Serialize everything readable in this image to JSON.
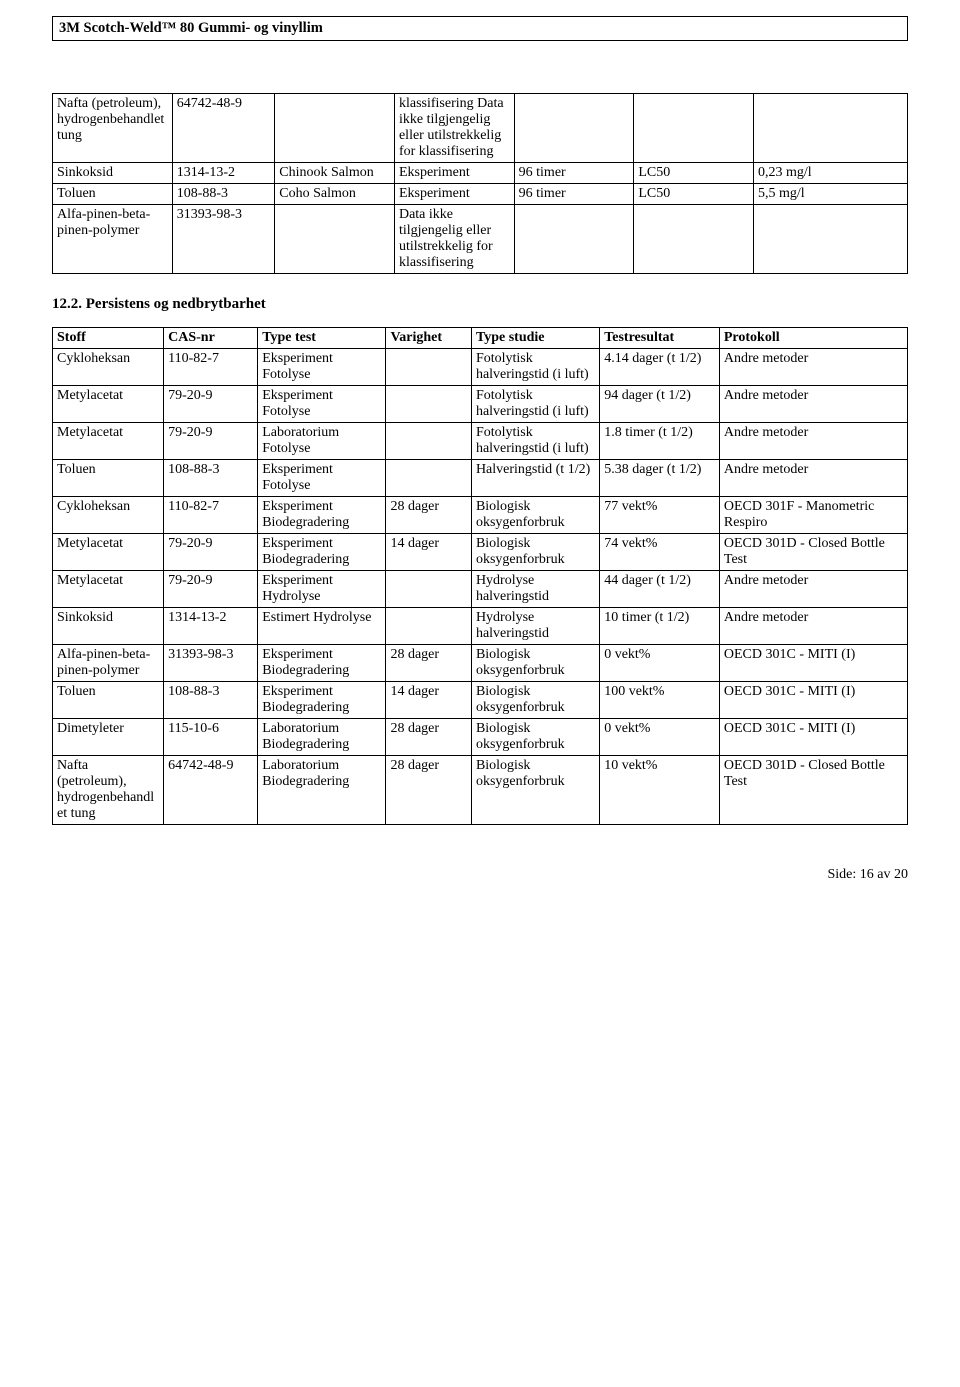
{
  "header": {
    "title": "3M Scotch-Weld™ 80 Gummi- og vinyllim"
  },
  "table1": {
    "rows": [
      {
        "c0": "Nafta (petroleum), hydrogenbehandlet tung",
        "c1": "64742-48-9",
        "c2": "",
        "c3": "klassifisering\nData ikke tilgjengelig eller utilstrekkelig for klassifisering",
        "c4": "",
        "c5": "",
        "c6": ""
      },
      {
        "c0": "Sinkoksid",
        "c1": "1314-13-2",
        "c2": "Chinook Salmon",
        "c3": "Eksperiment",
        "c4": "96 timer",
        "c5": "LC50",
        "c6": "0,23 mg/l"
      },
      {
        "c0": "Toluen",
        "c1": "108-88-3",
        "c2": "Coho Salmon",
        "c3": "Eksperiment",
        "c4": "96 timer",
        "c5": "LC50",
        "c6": "5,5 mg/l"
      },
      {
        "c0": "Alfa-pinen-beta-pinen-polymer",
        "c1": "31393-98-3",
        "c2": "",
        "c3": "Data ikke tilgjengelig eller utilstrekkelig for klassifisering",
        "c4": "",
        "c5": "",
        "c6": ""
      }
    ]
  },
  "section2": {
    "heading": "12.2. Persistens og nedbrytbarhet"
  },
  "table2": {
    "header": {
      "c0": "Stoff",
      "c1": "CAS-nr",
      "c2": "Type test",
      "c3": "Varighet",
      "c4": "Type studie",
      "c5": "Testresultat",
      "c6": "Protokoll"
    },
    "rows": [
      {
        "c0": "Cykloheksan",
        "c1": "110-82-7",
        "c2": "Eksperiment Fotolyse",
        "c3": "",
        "c4": "Fotolytisk halveringstid (i luft)",
        "c5": "4.14 dager (t 1/2)",
        "c6": "Andre metoder"
      },
      {
        "c0": "Metylacetat",
        "c1": "79-20-9",
        "c2": "Eksperiment Fotolyse",
        "c3": "",
        "c4": "Fotolytisk halveringstid (i luft)",
        "c5": "94 dager (t 1/2)",
        "c6": "Andre metoder"
      },
      {
        "c0": "Metylacetat",
        "c1": "79-20-9",
        "c2": "Laboratorium Fotolyse",
        "c3": "",
        "c4": "Fotolytisk halveringstid (i luft)",
        "c5": "1.8 timer (t 1/2)",
        "c6": "Andre metoder"
      },
      {
        "c0": "Toluen",
        "c1": "108-88-3",
        "c2": "Eksperiment Fotolyse",
        "c3": "",
        "c4": "Halveringstid (t 1/2)",
        "c5": "5.38 dager (t 1/2)",
        "c6": "Andre metoder"
      },
      {
        "c0": "Cykloheksan",
        "c1": "110-82-7",
        "c2": "Eksperiment Biodegradering",
        "c3": "28 dager",
        "c4": "Biologisk oksygenforbruk",
        "c5": "77 vekt%",
        "c6": "OECD 301F - Manometric Respiro"
      },
      {
        "c0": "Metylacetat",
        "c1": "79-20-9",
        "c2": "Eksperiment Biodegradering",
        "c3": "14 dager",
        "c4": "Biologisk oksygenforbruk",
        "c5": "74 vekt%",
        "c6": "OECD 301D - Closed Bottle Test"
      },
      {
        "c0": "Metylacetat",
        "c1": "79-20-9",
        "c2": "Eksperiment Hydrolyse",
        "c3": "",
        "c4": "Hydrolyse halveringstid",
        "c5": "44 dager (t 1/2)",
        "c6": "Andre metoder"
      },
      {
        "c0": "Sinkoksid",
        "c1": "1314-13-2",
        "c2": "Estimert Hydrolyse",
        "c3": "",
        "c4": "Hydrolyse halveringstid",
        "c5": "10 timer (t 1/2)",
        "c6": "Andre metoder"
      },
      {
        "c0": "Alfa-pinen-beta-pinen-polymer",
        "c1": "31393-98-3",
        "c2": "Eksperiment Biodegradering",
        "c3": "28 dager",
        "c4": "Biologisk oksygenforbruk",
        "c5": "0 vekt%",
        "c6": "OECD 301C - MITI (I)"
      },
      {
        "c0": "Toluen",
        "c1": "108-88-3",
        "c2": "Eksperiment Biodegradering",
        "c3": "14 dager",
        "c4": "Biologisk oksygenforbruk",
        "c5": "100 vekt%",
        "c6": "OECD 301C - MITI (I)"
      },
      {
        "c0": "Dimetyleter",
        "c1": "115-10-6",
        "c2": "Laboratorium Biodegradering",
        "c3": "28 dager",
        "c4": "Biologisk oksygenforbruk",
        "c5": "0 vekt%",
        "c6": "OECD 301C - MITI (I)"
      },
      {
        "c0": "Nafta (petroleum), hydrogenbehandlet tung",
        "c1": "64742-48-9",
        "c2": "Laboratorium Biodegradering",
        "c3": "28 dager",
        "c4": "Biologisk oksygenforbruk",
        "c5": "10 vekt%",
        "c6": "OECD 301D - Closed Bottle Test"
      }
    ]
  },
  "footer": {
    "text": "Side: 16 av  20"
  }
}
